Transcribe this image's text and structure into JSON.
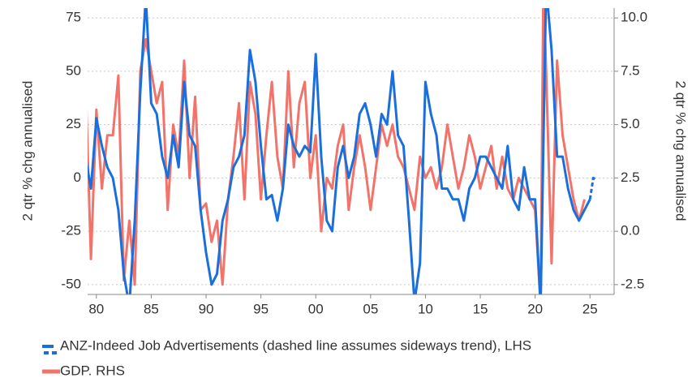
{
  "chart_data": {
    "type": "line",
    "ylabel": "2 qtr % chg annualised",
    "y2label": "2 qtr % chg annualised",
    "xlim": [
      1979.2,
      2027.2
    ],
    "xticks": [
      {
        "value": 1980,
        "label": "80"
      },
      {
        "value": 1985,
        "label": "85"
      },
      {
        "value": 1990,
        "label": "90"
      },
      {
        "value": 1995,
        "label": "95"
      },
      {
        "value": 2000,
        "label": "00"
      },
      {
        "value": 2005,
        "label": "05"
      },
      {
        "value": 2010,
        "label": "10"
      },
      {
        "value": 2015,
        "label": "15"
      },
      {
        "value": 2020,
        "label": "20"
      },
      {
        "value": 2025,
        "label": "25"
      }
    ],
    "ylim": [
      -54.6,
      79.6
    ],
    "yticks": [
      -50,
      -25,
      0,
      25,
      50,
      75
    ],
    "y2lim": [
      -2.96,
      10.46
    ],
    "y2ticks": [
      -2.5,
      {
        "value": 0,
        "label": "0.0"
      },
      2.5,
      {
        "value": 5,
        "label": "5.0"
      },
      7.5,
      {
        "value": 10,
        "label": "10.0"
      }
    ],
    "grid": true,
    "legend": "bottom-left",
    "series": [
      {
        "name": "ANZ-Indeed Job Advertisements (dashed line assumes sideways trend), LHS",
        "color": "#1a6fdc",
        "axis": "y",
        "x": [
          1979,
          1979.5,
          1980,
          1980.5,
          1981,
          1981.5,
          1982,
          1982.5,
          1983,
          1983.5,
          1984,
          1984.5,
          1985,
          1985.5,
          1986,
          1986.5,
          1987,
          1987.5,
          1988,
          1988.5,
          1989,
          1989.5,
          1990,
          1990.5,
          1991,
          1991.5,
          1992,
          1992.5,
          1993,
          1993.5,
          1994,
          1994.5,
          1995,
          1995.5,
          1996,
          1996.5,
          1997,
          1997.5,
          1998,
          1998.5,
          1999,
          1999.5,
          2000,
          2000.5,
          2001,
          2001.5,
          2002,
          2002.5,
          2003,
          2003.5,
          2004,
          2004.5,
          2005,
          2005.5,
          2006,
          2006.5,
          2007,
          2007.5,
          2008,
          2008.5,
          2009,
          2009.5,
          2010,
          2010.5,
          2011,
          2011.5,
          2012,
          2012.5,
          2013,
          2013.5,
          2014,
          2014.5,
          2015,
          2015.5,
          2016,
          2016.5,
          2017,
          2017.5,
          2018,
          2018.5,
          2019,
          2019.5,
          2020,
          2020.5,
          2021,
          2021.5,
          2022,
          2022.5,
          2023,
          2023.5,
          2024,
          2024.5,
          2025
        ],
        "values": [
          10,
          -5,
          28,
          15,
          5,
          0,
          -15,
          -45,
          -60,
          -20,
          40,
          85,
          35,
          30,
          10,
          0,
          20,
          5,
          45,
          20,
          15,
          -15,
          -35,
          -50,
          -45,
          -20,
          -10,
          5,
          10,
          20,
          60,
          45,
          15,
          -10,
          -8,
          -20,
          -5,
          25,
          15,
          10,
          15,
          12,
          58,
          10,
          -20,
          -25,
          5,
          15,
          0,
          10,
          30,
          35,
          25,
          10,
          30,
          25,
          50,
          20,
          15,
          -20,
          -58,
          -40,
          45,
          30,
          20,
          -5,
          -5,
          -10,
          -10,
          -20,
          -5,
          0,
          10,
          10,
          5,
          0,
          -5,
          15,
          -10,
          -15,
          5,
          -10,
          -10,
          -60,
          90,
          60,
          10,
          10,
          -5,
          -15,
          -20,
          -15,
          -10
        ],
        "projection": {
          "x": [
            2025,
            2025.3,
            2025.6
          ],
          "values": [
            -10,
            0,
            -1
          ]
        }
      },
      {
        "name": "GDP. RHS",
        "color": "#f2736a",
        "axis": "y2",
        "x": [
          1979,
          1979.5,
          1980,
          1980.5,
          1981,
          1981.5,
          1982,
          1982.5,
          1983,
          1983.5,
          1984,
          1984.5,
          1985,
          1985.5,
          1986,
          1986.5,
          1987,
          1987.5,
          1988,
          1988.5,
          1989,
          1989.5,
          1990,
          1990.5,
          1991,
          1991.5,
          1992,
          1992.5,
          1993,
          1993.5,
          1994,
          1994.5,
          1995,
          1995.5,
          1996,
          1996.5,
          1997,
          1997.5,
          1998,
          1998.5,
          1999,
          1999.5,
          2000,
          2000.5,
          2001,
          2001.5,
          2002,
          2002.5,
          2003,
          2003.5,
          2004,
          2004.5,
          2005,
          2005.5,
          2006,
          2006.5,
          2007,
          2007.5,
          2008,
          2008.5,
          2009,
          2009.5,
          2010,
          2010.5,
          2011,
          2011.5,
          2012,
          2012.5,
          2013,
          2013.5,
          2014,
          2014.5,
          2015,
          2015.5,
          2016,
          2016.5,
          2017,
          2017.5,
          2018,
          2018.5,
          2019,
          2019.5,
          2020,
          2020.5,
          2020.75,
          2021,
          2021.5,
          2022,
          2022.5,
          2023,
          2023.5,
          2024,
          2024.5
        ],
        "values": [
          7.2,
          -1.3,
          5.7,
          2.0,
          4.5,
          4.5,
          7.3,
          -2.3,
          0.5,
          -2.5,
          7.5,
          9.0,
          7.5,
          6.0,
          7.0,
          1.0,
          5.0,
          3.5,
          8.0,
          2.5,
          6.3,
          1.0,
          1.3,
          -0.5,
          0.5,
          -2.5,
          1.5,
          3.5,
          6.0,
          1.5,
          7.0,
          5.5,
          1.5,
          4.5,
          7.0,
          3.5,
          2.0,
          7.5,
          3.0,
          6.0,
          7.0,
          2.5,
          4.5,
          0.0,
          2.5,
          2.0,
          4.0,
          5.0,
          1.0,
          3.0,
          4.5,
          3.0,
          1.0,
          3.0,
          5.0,
          4.0,
          5.0,
          3.5,
          3.0,
          2.0,
          1.0,
          3.5,
          2.5,
          3.0,
          2.0,
          3.0,
          5.0,
          3.5,
          2.0,
          3.0,
          4.5,
          3.5,
          2.0,
          3.0,
          4.0,
          2.0,
          3.5,
          2.0,
          1.5,
          2.5,
          2.0,
          1.5,
          1.0,
          -3.5,
          11.5,
          7.5,
          -1.5,
          8.0,
          4.5,
          3.0,
          1.5,
          0.5,
          1.5
        ]
      }
    ]
  }
}
